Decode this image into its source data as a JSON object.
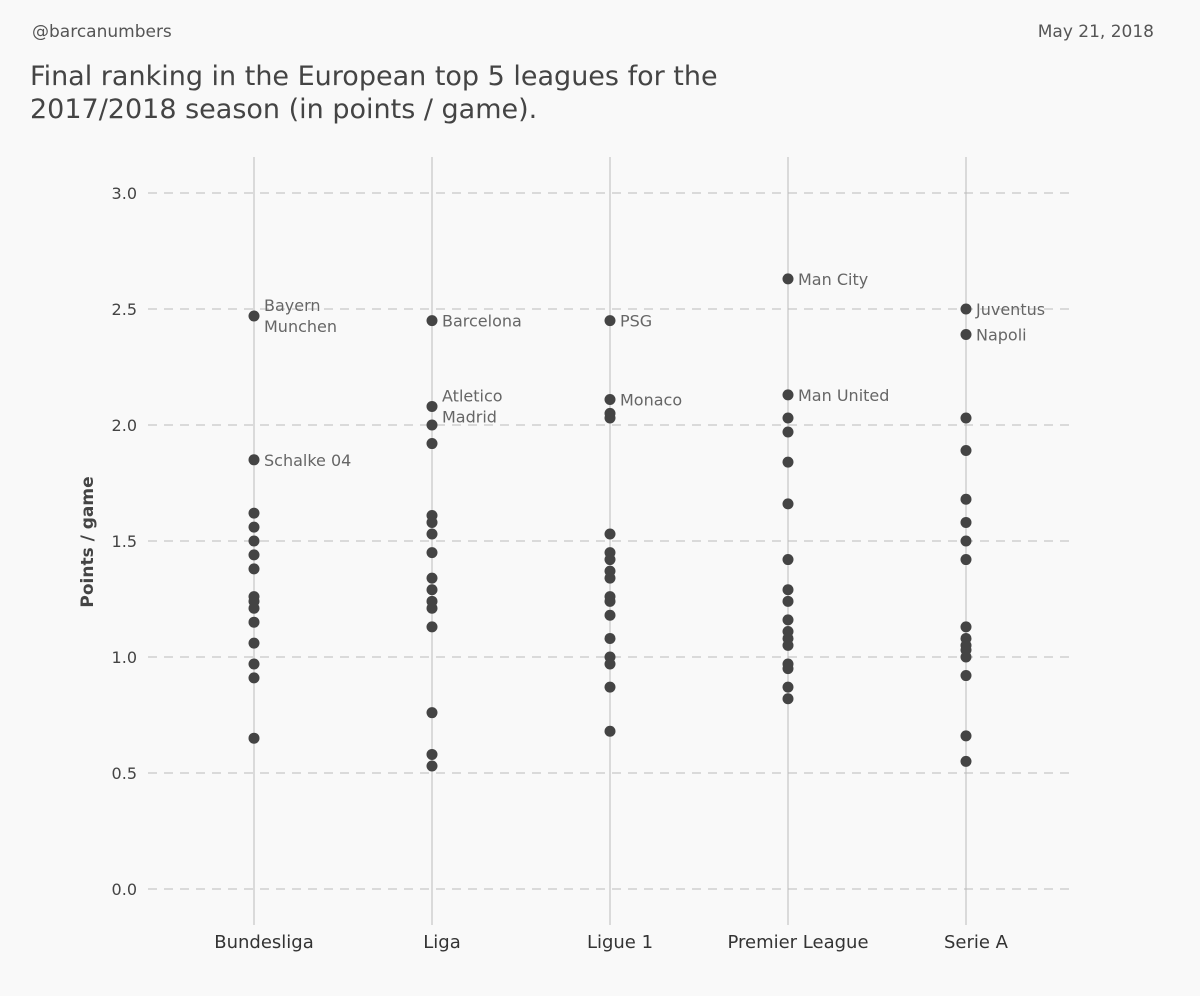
{
  "header": {
    "handle": "@barcanumbers",
    "date": "May 21, 2018"
  },
  "title": "Final ranking in the European top 5 leagues for the 2017/2018 season (in points / game).",
  "colors": {
    "background": "#f9f9f9",
    "point": "#444444",
    "grid": "#bbbbbb",
    "team_label": "#666666"
  },
  "chart_data": {
    "type": "scatter",
    "title": "Final ranking in the European top 5 leagues for the 2017/2018 season (in points / game).",
    "xlabel": "",
    "ylabel": "Points / game",
    "ylim": [
      0,
      3.1
    ],
    "yticks": [
      "0.0",
      "0.5",
      "1.0",
      "1.5",
      "2.0",
      "2.5",
      "3.0"
    ],
    "grid": true,
    "categories": [
      "Bundesliga",
      "Liga",
      "Ligue 1",
      "Premier League",
      "Serie A"
    ],
    "series": [
      {
        "name": "Bundesliga",
        "values": [
          2.47,
          1.85,
          1.62,
          1.56,
          1.5,
          1.44,
          1.38,
          1.26,
          1.24,
          1.21,
          1.15,
          1.06,
          0.97,
          0.91,
          0.65
        ]
      },
      {
        "name": "Liga",
        "values": [
          2.45,
          2.08,
          2.0,
          1.92,
          1.61,
          1.58,
          1.53,
          1.45,
          1.34,
          1.29,
          1.24,
          1.21,
          1.13,
          0.76,
          0.58,
          0.53
        ]
      },
      {
        "name": "Ligue 1",
        "values": [
          2.45,
          2.11,
          2.05,
          2.03,
          1.53,
          1.45,
          1.42,
          1.37,
          1.34,
          1.26,
          1.24,
          1.18,
          1.08,
          1.0,
          0.97,
          0.87,
          0.68
        ]
      },
      {
        "name": "Premier League",
        "values": [
          2.63,
          2.13,
          2.03,
          1.97,
          1.84,
          1.66,
          1.42,
          1.29,
          1.24,
          1.16,
          1.11,
          1.08,
          1.05,
          0.97,
          0.95,
          0.87,
          0.82
        ]
      },
      {
        "name": "Serie A",
        "values": [
          2.5,
          2.39,
          2.03,
          1.89,
          1.68,
          1.58,
          1.5,
          1.42,
          1.13,
          1.08,
          1.05,
          1.03,
          1.0,
          0.92,
          0.66,
          0.55
        ]
      }
    ],
    "annotations": [
      {
        "category": "Bundesliga",
        "y": 2.47,
        "lines": [
          "Bayern",
          "Munchen"
        ]
      },
      {
        "category": "Bundesliga",
        "y": 1.85,
        "lines": [
          "Schalke 04"
        ]
      },
      {
        "category": "Liga",
        "y": 2.45,
        "lines": [
          "Barcelona"
        ]
      },
      {
        "category": "Liga",
        "y": 2.08,
        "lines": [
          "Atletico",
          "Madrid"
        ]
      },
      {
        "category": "Ligue 1",
        "y": 2.45,
        "lines": [
          "PSG"
        ]
      },
      {
        "category": "Ligue 1",
        "y": 2.11,
        "lines": [
          "Monaco"
        ]
      },
      {
        "category": "Premier League",
        "y": 2.63,
        "lines": [
          "Man City"
        ]
      },
      {
        "category": "Premier League",
        "y": 2.13,
        "lines": [
          "Man United"
        ]
      },
      {
        "category": "Serie A",
        "y": 2.5,
        "lines": [
          "Juventus"
        ]
      },
      {
        "category": "Serie A",
        "y": 2.39,
        "lines": [
          "Napoli"
        ]
      }
    ]
  }
}
